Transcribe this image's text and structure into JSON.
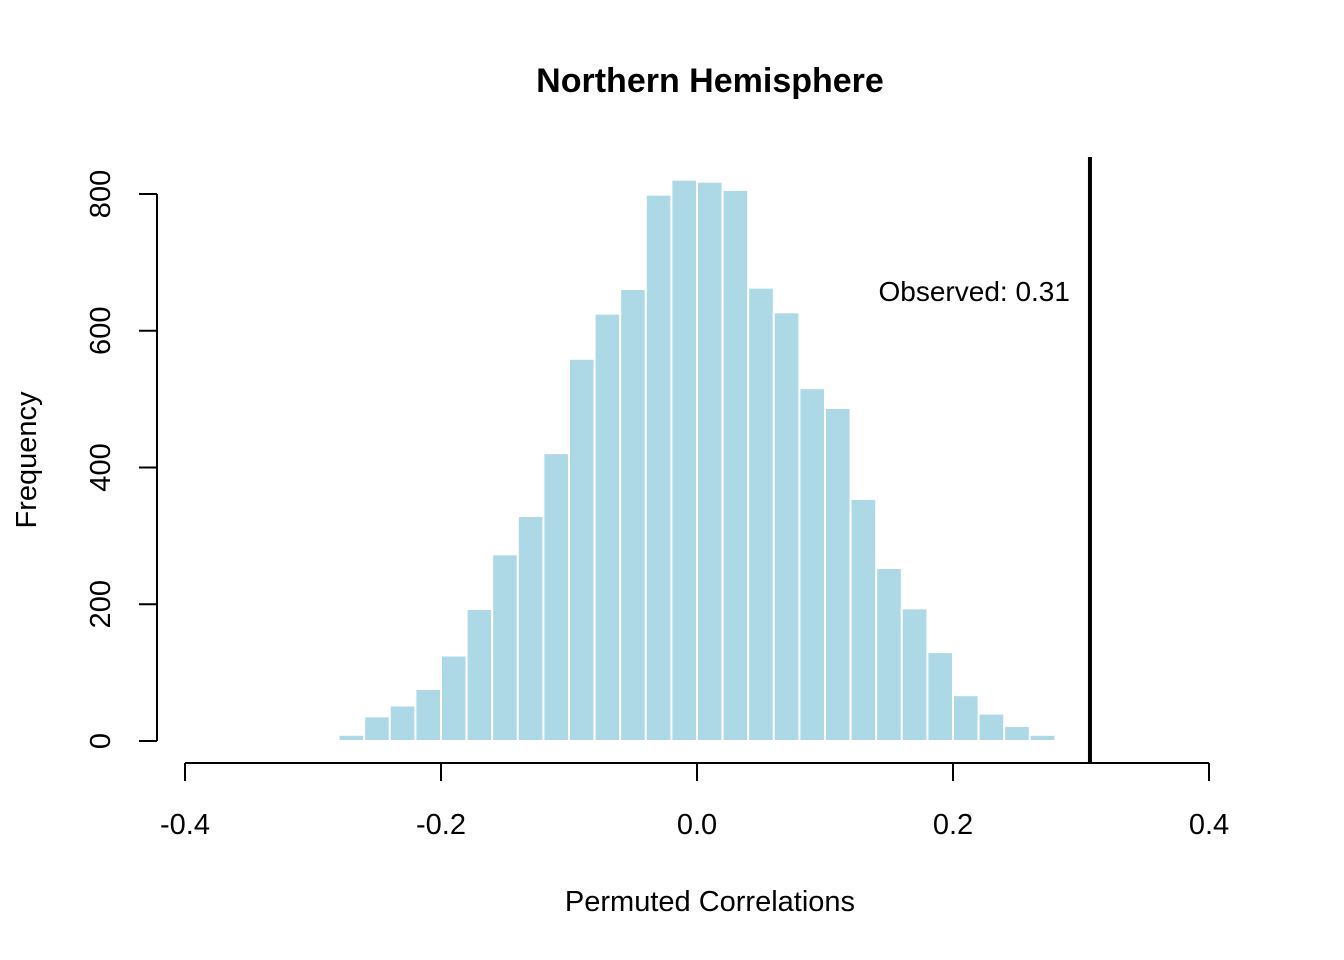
{
  "chart_data": {
    "type": "bar",
    "title": "Northern Hemisphere",
    "xlabel": "Permuted Correlations",
    "ylabel": "Frequency",
    "xlim": [
      -0.4,
      0.4
    ],
    "ylim": [
      0,
      800
    ],
    "x_ticks": [
      "-0.4",
      "-0.2",
      "0.0",
      "0.2",
      "0.4"
    ],
    "y_ticks": [
      "0",
      "200",
      "400",
      "600",
      "800"
    ],
    "bin_width": 0.02,
    "bins": [
      {
        "start": -0.28,
        "end": -0.26,
        "count": 9
      },
      {
        "start": -0.26,
        "end": -0.24,
        "count": 36
      },
      {
        "start": -0.24,
        "end": -0.22,
        "count": 52
      },
      {
        "start": -0.22,
        "end": -0.2,
        "count": 76
      },
      {
        "start": -0.2,
        "end": -0.18,
        "count": 125
      },
      {
        "start": -0.18,
        "end": -0.16,
        "count": 193
      },
      {
        "start": -0.16,
        "end": -0.14,
        "count": 273
      },
      {
        "start": -0.14,
        "end": -0.12,
        "count": 329
      },
      {
        "start": -0.12,
        "end": -0.1,
        "count": 421
      },
      {
        "start": -0.1,
        "end": -0.08,
        "count": 559
      },
      {
        "start": -0.08,
        "end": -0.06,
        "count": 625
      },
      {
        "start": -0.06,
        "end": -0.04,
        "count": 661
      },
      {
        "start": -0.04,
        "end": -0.02,
        "count": 799
      },
      {
        "start": -0.02,
        "end": 0.0,
        "count": 821
      },
      {
        "start": 0.0,
        "end": 0.02,
        "count": 818
      },
      {
        "start": 0.02,
        "end": 0.04,
        "count": 806
      },
      {
        "start": 0.04,
        "end": 0.06,
        "count": 663
      },
      {
        "start": 0.06,
        "end": 0.08,
        "count": 627
      },
      {
        "start": 0.08,
        "end": 0.1,
        "count": 516
      },
      {
        "start": 0.1,
        "end": 0.12,
        "count": 487
      },
      {
        "start": 0.12,
        "end": 0.14,
        "count": 354
      },
      {
        "start": 0.14,
        "end": 0.16,
        "count": 253
      },
      {
        "start": 0.16,
        "end": 0.18,
        "count": 194
      },
      {
        "start": 0.18,
        "end": 0.2,
        "count": 130
      },
      {
        "start": 0.2,
        "end": 0.22,
        "count": 67
      },
      {
        "start": 0.22,
        "end": 0.24,
        "count": 40
      },
      {
        "start": 0.24,
        "end": 0.26,
        "count": 22
      },
      {
        "start": 0.26,
        "end": 0.28,
        "count": 9
      },
      {
        "start": 0.28,
        "end": 0.3,
        "count": 2
      }
    ],
    "observed": {
      "value": 0.307,
      "label": "Observed: 0.31"
    },
    "colors": {
      "bar_fill": "#add8e6",
      "bar_border": "#ffffff",
      "observed_line": "#000000"
    },
    "grid": false,
    "legend": "none"
  }
}
